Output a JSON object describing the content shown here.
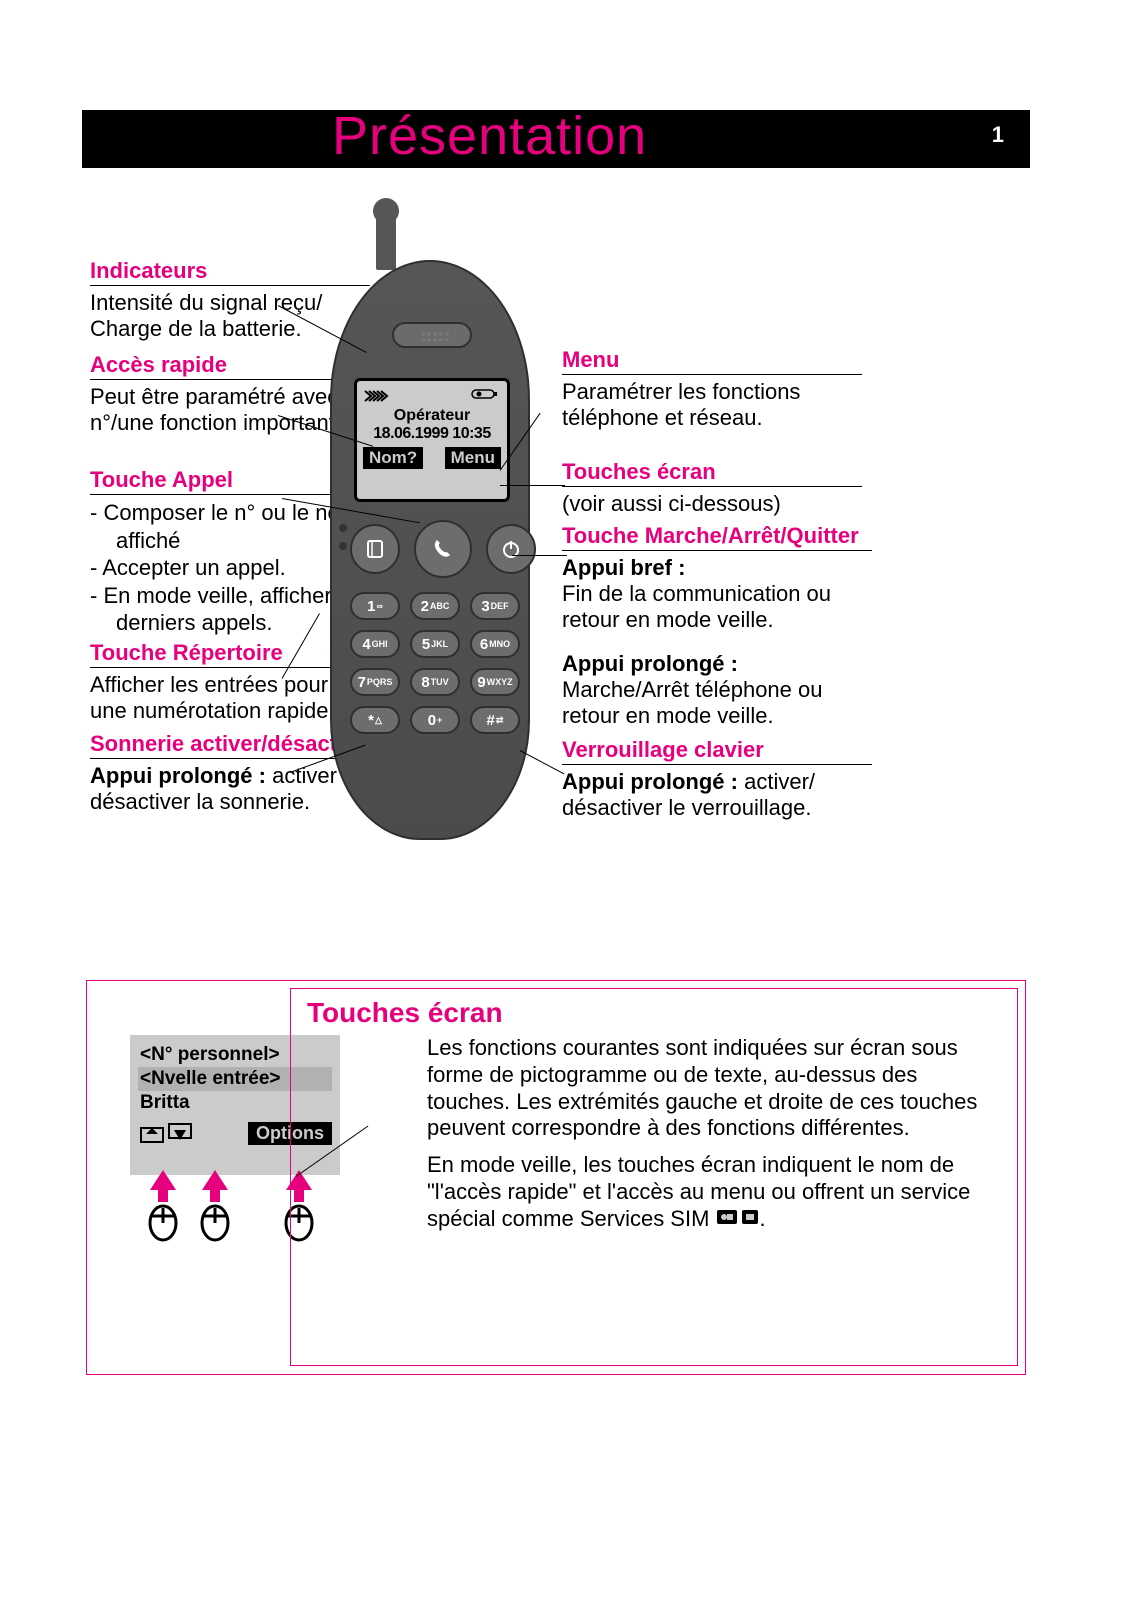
{
  "meta": {
    "type": "document",
    "background_color": "#ffffff",
    "accent_color": "#e6007e",
    "text_color": "#000000",
    "phone_body_color": "#555658",
    "screen_bg": "#cacbcb"
  },
  "header": {
    "title": "Présentation",
    "page_number": "1"
  },
  "left": {
    "indicateurs": {
      "title": "Indicateurs",
      "text": "Intensité du signal reçu/ Charge de la batterie."
    },
    "acces": {
      "title": "Accès rapide",
      "text": "Peut être paramétré avec un n°/une fonction impor­tante."
    },
    "appel": {
      "title": "Touche Appel",
      "items": [
        "Composer le n° ou le nom affiché",
        "Accepter un appel.",
        "En mode veille, afficher les derniers appels."
      ]
    },
    "repertoire": {
      "title": "Touche Répertoire",
      "text": "Afficher les entrées pour une numérotation rapide."
    },
    "sonnerie": {
      "title": "Sonnerie activer/désactiver",
      "bold": "Appui prolongé : ",
      "text": "activer ou désactiver la sonnerie."
    }
  },
  "right": {
    "menu": {
      "title": "Menu",
      "text": "Paramétrer les fonctions téléphone et réseau."
    },
    "touches_ecran": {
      "title": "Touches écran",
      "text": "(voir aussi ci-dessous)"
    },
    "marche": {
      "title": "Touche Marche/Arrêt/Quitter",
      "bref_label": "Appui bref :",
      "bref_text": "Fin de la communication ou retour en mode veille.",
      "long_label": "Appui prolongé :",
      "long_text": "Marche/Arrêt téléphone ou retour en mode veille."
    },
    "verrou": {
      "title": "Verrouillage clavier",
      "bold": "Appui prolongé : ",
      "text": "activer/ désactiver le verrouillage."
    }
  },
  "phone_screen": {
    "operator": "Opérateur",
    "datetime": "18.06.1999  10:35",
    "soft_left": "Nom?",
    "soft_right": "Menu"
  },
  "keypad": [
    [
      {
        "d": "1",
        "l": "∞"
      },
      {
        "d": "2",
        "l": "ABC"
      },
      {
        "d": "3",
        "l": "DEF"
      }
    ],
    [
      {
        "d": "4",
        "l": "GHI"
      },
      {
        "d": "5",
        "l": "JKL"
      },
      {
        "d": "6",
        "l": "MNO"
      }
    ],
    [
      {
        "d": "7",
        "l": "PQRS"
      },
      {
        "d": "8",
        "l": "TUV"
      },
      {
        "d": "9",
        "l": "WXYZ"
      }
    ],
    [
      {
        "d": "*",
        "l": "△"
      },
      {
        "d": "0",
        "l": "+"
      },
      {
        "d": "#",
        "l": "⇄"
      }
    ]
  ],
  "lower": {
    "title": "Touches écran",
    "p1": "Les fonctions courantes sont indiquées sur écran sous forme de pictogramme ou de texte, au-dessus des touches. Les extrémités gauche et droite de ces tou­ches peuvent correspondre à des fonc­tions différentes.",
    "p2_a": "En mode veille, les touches écran indi­quent le nom de \"l'accès rapide\" et l'ac­cès au menu ou offrent un service spé­cial comme Services SIM ",
    "p2_b": "."
  },
  "mini": {
    "row1": "<N° personnel>",
    "row2": "<Nvelle entrée>",
    "row3": "Britta",
    "opt": "Options"
  }
}
